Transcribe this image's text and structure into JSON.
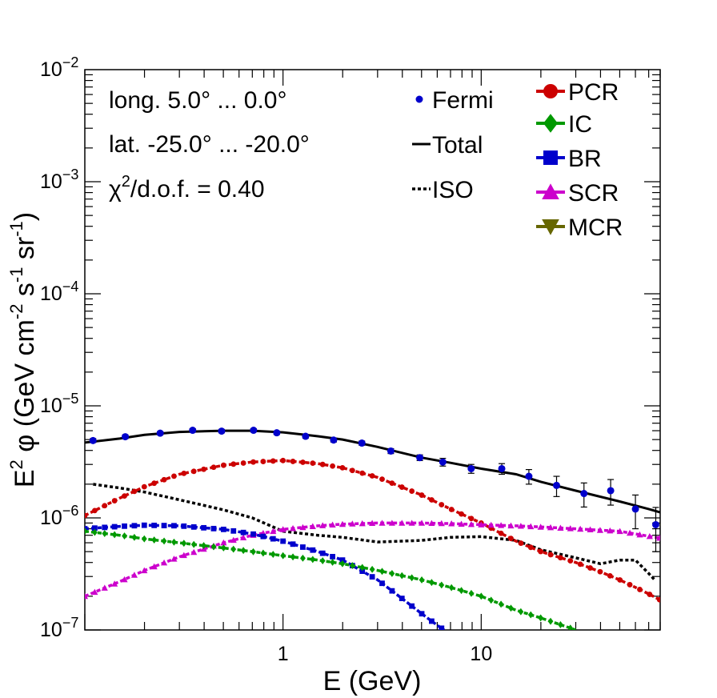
{
  "chart_data": {
    "type": "line",
    "xscale": "log",
    "yscale": "log",
    "xlim": [
      0.1,
      80
    ],
    "ylim": [
      1e-07,
      0.01
    ],
    "xlabel": "E (GeV)",
    "ylabel": {
      "parts": [
        "E",
        "2",
        " φ (GeV cm",
        "-2",
        " s",
        "-1",
        " sr",
        "-1",
        ")"
      ]
    },
    "x_tick_labels": [
      {
        "value": 1,
        "label": "1"
      },
      {
        "value": 10,
        "label": "10"
      }
    ],
    "y_tick_labels": [
      {
        "value": 1e-07,
        "base": "10",
        "exp": "−7"
      },
      {
        "value": 1e-06,
        "base": "10",
        "exp": "−6"
      },
      {
        "value": 1e-05,
        "base": "10",
        "exp": "−5"
      },
      {
        "value": 0.0001,
        "base": "10",
        "exp": "−4"
      },
      {
        "value": 0.001,
        "base": "10",
        "exp": "−3"
      },
      {
        "value": 0.01,
        "base": "10",
        "exp": "−2"
      }
    ],
    "annotations": {
      "longitude": "long. 5.0° ... 0.0°",
      "latitude": "lat. -25.0° ... -20.0°",
      "chi2_symbol": "χ",
      "chi2_sup": "2",
      "chi2_rest": "/d.o.f. = 0.40"
    },
    "colors": {
      "Fermi": "#0000cc",
      "Total": "#000000",
      "ISO": "#000000",
      "PCR": "#cc0000",
      "IC": "#009900",
      "BR": "#0000cc",
      "SCR": "#cc00cc",
      "MCR": "#666600"
    },
    "legend": [
      {
        "name": "Fermi",
        "label": "Fermi",
        "style": "point"
      },
      {
        "name": "Total",
        "label": "Total",
        "style": "solid"
      },
      {
        "name": "ISO",
        "label": "ISO",
        "style": "dotted"
      },
      {
        "name": "PCR",
        "label": "PCR",
        "style": "circle"
      },
      {
        "name": "IC",
        "label": "IC",
        "style": "diamond"
      },
      {
        "name": "BR",
        "label": "BR",
        "style": "square"
      },
      {
        "name": "SCR",
        "label": "SCR",
        "style": "triangle-up"
      },
      {
        "name": "MCR",
        "label": "MCR",
        "style": "triangle-down"
      }
    ],
    "fermi_points": [
      {
        "x": 0.11,
        "y": 4.9e-06,
        "err": 2e-07
      },
      {
        "x": 0.16,
        "y": 5.3e-06,
        "err": 2e-07
      },
      {
        "x": 0.24,
        "y": 5.7e-06,
        "err": 2e-07
      },
      {
        "x": 0.35,
        "y": 6.05e-06,
        "err": 2e-07
      },
      {
        "x": 0.49,
        "y": 5.95e-06,
        "err": 2e-07
      },
      {
        "x": 0.71,
        "y": 6.05e-06,
        "err": 2e-07
      },
      {
        "x": 0.93,
        "y": 5.75e-06,
        "err": 2e-07
      },
      {
        "x": 1.3,
        "y": 5.35e-06,
        "err": 2e-07
      },
      {
        "x": 1.8,
        "y": 4.95e-06,
        "err": 2e-07
      },
      {
        "x": 2.5,
        "y": 4.65e-06,
        "err": 2e-07
      },
      {
        "x": 3.5,
        "y": 3.95e-06,
        "err": 2e-07
      },
      {
        "x": 4.9,
        "y": 3.45e-06,
        "err": 2e-07
      },
      {
        "x": 6.4,
        "y": 3.15e-06,
        "err": 2.5e-07
      },
      {
        "x": 8.9,
        "y": 2.75e-06,
        "err": 2.5e-07
      },
      {
        "x": 12.7,
        "y": 2.75e-06,
        "err": 3e-07
      },
      {
        "x": 17.4,
        "y": 2.35e-06,
        "err": 3.5e-07
      },
      {
        "x": 24.0,
        "y": 1.95e-06,
        "err": 4e-07
      },
      {
        "x": 33.0,
        "y": 1.65e-06,
        "err": 4e-07
      },
      {
        "x": 45.0,
        "y": 1.75e-06,
        "err": 4.5e-07
      },
      {
        "x": 60.0,
        "y": 1.2e-06,
        "err": 4e-07
      },
      {
        "x": 76.0,
        "y": 8.7e-07,
        "err": 3.7e-07
      }
    ],
    "series": [
      {
        "name": "Total",
        "x": [
          0.1,
          0.15,
          0.2,
          0.3,
          0.5,
          0.7,
          1.0,
          1.5,
          2.0,
          3.0,
          5.0,
          7.0,
          10,
          15,
          20,
          30,
          50,
          70,
          80
        ],
        "y": [
          4.7e-06,
          5.1e-06,
          5.5e-06,
          5.85e-06,
          6e-06,
          6e-06,
          5.8e-06,
          5.35e-06,
          5e-06,
          4.3e-06,
          3.45e-06,
          3.1e-06,
          2.75e-06,
          2.45e-06,
          2.1e-06,
          1.75e-06,
          1.4e-06,
          1.2e-06,
          1.12e-06
        ]
      },
      {
        "name": "ISO",
        "x": [
          0.11,
          0.15,
          0.2,
          0.3,
          0.5,
          0.7,
          1.0,
          1.5,
          2.0,
          3.0,
          5.0,
          7.0,
          10,
          15,
          20,
          30,
          40,
          50,
          60,
          70,
          75
        ],
        "y": [
          2e-06,
          1.85e-06,
          1.7e-06,
          1.45e-06,
          1.18e-06,
          1e-06,
          7.6e-07,
          7e-07,
          6.7e-07,
          6.1e-07,
          6.3e-07,
          6.7e-07,
          6.8e-07,
          6.3e-07,
          5.2e-07,
          4.4e-07,
          3.9e-07,
          4.2e-07,
          4.2e-07,
          3.2e-07,
          2.8e-07
        ]
      },
      {
        "name": "PCR",
        "x": [
          0.1,
          0.15,
          0.2,
          0.3,
          0.5,
          0.7,
          1.0,
          1.5,
          2.0,
          3.0,
          5.0,
          7.0,
          10,
          15,
          20,
          30,
          40,
          50,
          60,
          70,
          80
        ],
        "y": [
          1.05e-06,
          1.5e-06,
          1.9e-06,
          2.45e-06,
          2.95e-06,
          3.15e-06,
          3.25e-06,
          3.05e-06,
          2.8e-06,
          2.3e-06,
          1.6e-06,
          1.2e-06,
          9e-07,
          6.2e-07,
          5e-07,
          4e-07,
          3.3e-07,
          2.8e-07,
          2.4e-07,
          2.1e-07,
          1.85e-07
        ]
      },
      {
        "name": "SCR",
        "x": [
          0.1,
          0.15,
          0.2,
          0.3,
          0.5,
          0.7,
          1.0,
          1.5,
          2.0,
          3.0,
          5.0,
          7.0,
          10,
          15,
          20,
          30,
          50,
          80
        ],
        "y": [
          2e-07,
          2.7e-07,
          3.4e-07,
          4.5e-07,
          6e-07,
          7e-07,
          7.9e-07,
          8.5e-07,
          8.8e-07,
          9e-07,
          9e-07,
          8.9e-07,
          8.7e-07,
          8.5e-07,
          8.3e-07,
          8e-07,
          7.6e-07,
          6.6e-07
        ]
      },
      {
        "name": "BR",
        "x": [
          0.1,
          0.15,
          0.2,
          0.3,
          0.5,
          0.7,
          1.0,
          1.5,
          2.0,
          3.0,
          4.0,
          5.0,
          6.0,
          6.5
        ],
        "y": [
          8e-07,
          8.4e-07,
          8.6e-07,
          8.5e-07,
          7.9e-07,
          7.2e-07,
          6.2e-07,
          5e-07,
          4.2e-07,
          2.8e-07,
          1.9e-07,
          1.4e-07,
          1.1e-07,
          1e-07
        ]
      },
      {
        "name": "IC",
        "x": [
          0.1,
          0.15,
          0.2,
          0.3,
          0.5,
          0.7,
          1.0,
          1.5,
          2.0,
          3.0,
          5.0,
          7.0,
          10,
          15,
          20,
          30
        ],
        "y": [
          7.6e-07,
          7e-07,
          6.5e-07,
          6e-07,
          5.4e-07,
          5e-07,
          4.6e-07,
          4.2e-07,
          3.9e-07,
          3.4e-07,
          2.8e-07,
          2.4e-07,
          2e-07,
          1.5e-07,
          1.28e-07,
          1e-07
        ]
      }
    ]
  }
}
